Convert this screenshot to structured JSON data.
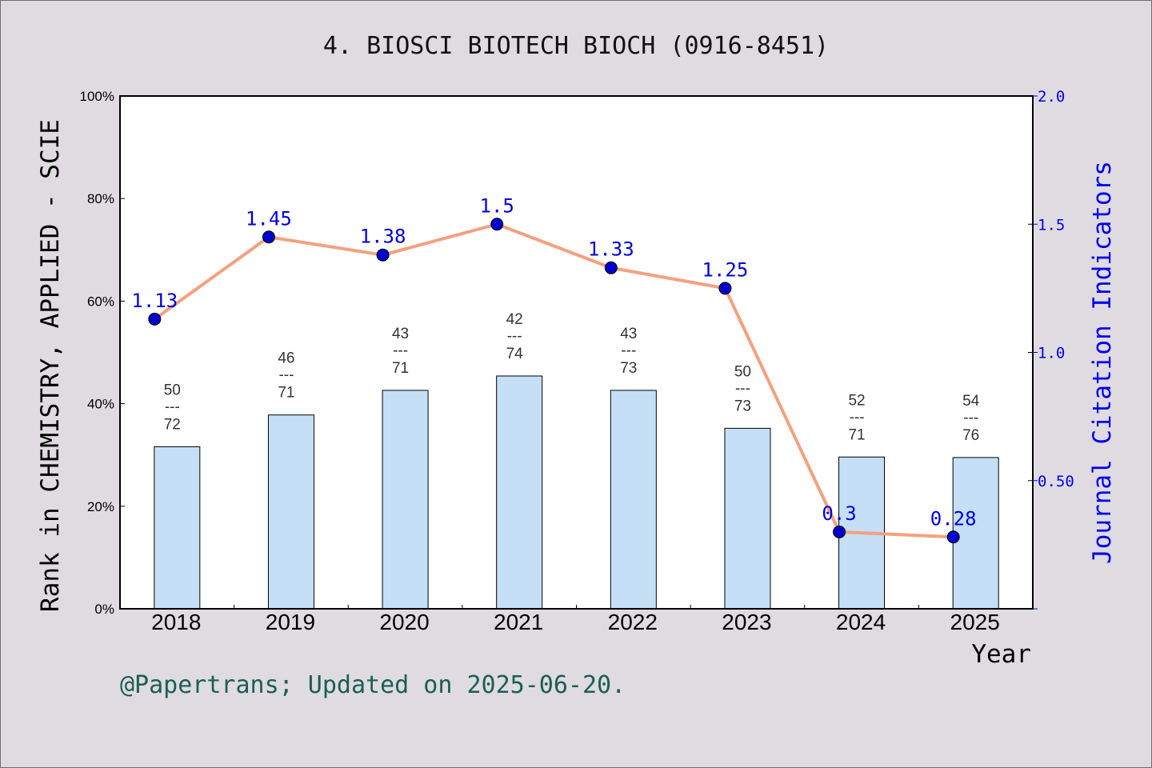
{
  "chart_data": {
    "type": "bar",
    "title": "4. BIOSCI BIOTECH BIOCH (0916-8451)",
    "xlabel": "Year",
    "ylabel_left": "Rank in CHEMISTRY, APPLIED - SCIE",
    "ylabel_right": "Journal Citation Indicators",
    "categories": [
      "2018",
      "2019",
      "2020",
      "2021",
      "2022",
      "2023",
      "2024",
      "2025"
    ],
    "left_axis": {
      "ylim": [
        0,
        100
      ],
      "ticks": [
        "0%",
        "20%",
        "40%",
        "60%",
        "80%",
        "100%"
      ]
    },
    "right_axis": {
      "ylim": [
        0,
        2.0
      ],
      "ticks": [
        "0.50",
        "1.0",
        "1.5",
        "2.0"
      ]
    },
    "bar_series": {
      "percent": [
        31.6,
        37.8,
        42.6,
        45.4,
        42.6,
        35.2,
        29.6,
        29.5
      ],
      "rank": [
        "50",
        "46",
        "43",
        "42",
        "43",
        "50",
        "52",
        "54"
      ],
      "total": [
        "72",
        "71",
        "71",
        "74",
        "73",
        "73",
        "71",
        "76"
      ],
      "separator": "---",
      "color": "#c5dff6"
    },
    "line_series": {
      "values": [
        1.13,
        1.45,
        1.38,
        1.5,
        1.33,
        1.25,
        0.3,
        0.28
      ],
      "labels": [
        "1.13",
        "1.45",
        "1.38",
        "1.5",
        "1.33",
        "1.25",
        "0.3",
        "0.28"
      ],
      "line_color": "#f4a07f",
      "marker_color": "#0000cc"
    },
    "grid": false
  },
  "footer": "@Papertrans; Updated on 2025-06-20."
}
